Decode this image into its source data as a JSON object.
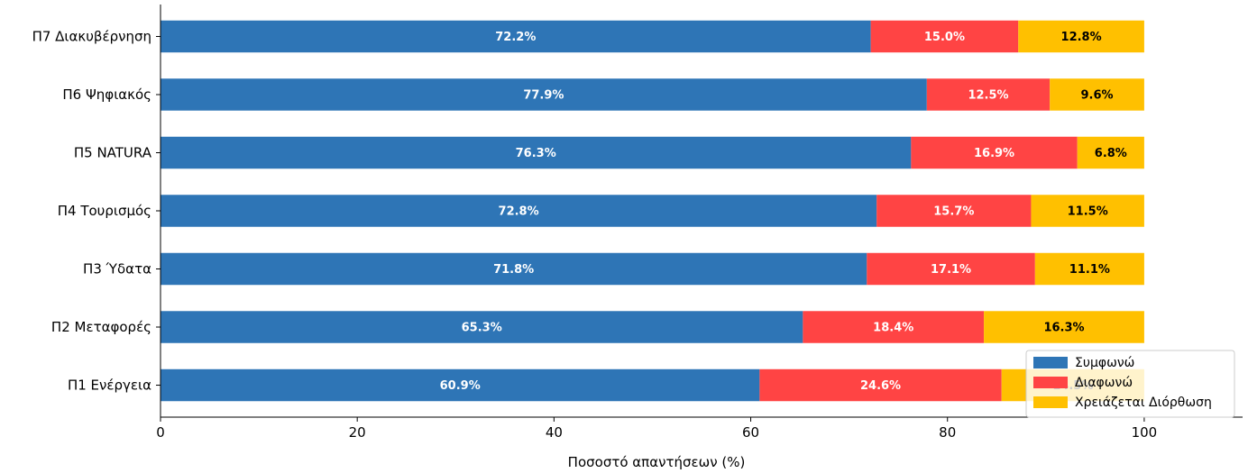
{
  "chart_data": {
    "type": "bar",
    "orientation": "horizontal",
    "stacked": true,
    "categories": [
      "Π1 Ενέργεια",
      "Π2 Μεταφορές",
      "Π3 Ύδατα",
      "Π4 Τουρισμός",
      "Π5 NATURA",
      "Π6 Ψηφιακός",
      "Π7 Διακυβέρνηση"
    ],
    "series": [
      {
        "name": "Συμφωνώ",
        "color": "#2e75b6",
        "label_color": "#ffffff",
        "values": [
          60.9,
          65.3,
          71.8,
          72.8,
          76.3,
          77.9,
          72.2
        ]
      },
      {
        "name": "Διαφωνώ",
        "color": "#ff4444",
        "label_color": "#ffffff",
        "values": [
          24.6,
          18.4,
          17.1,
          15.7,
          16.9,
          12.5,
          15.0
        ]
      },
      {
        "name": "Χρειάζεται Διόρθωση",
        "color": "#ffc000",
        "label_color": "#000000",
        "values": [
          14.5,
          16.3,
          11.1,
          11.5,
          6.8,
          9.6,
          12.8
        ]
      }
    ],
    "value_labels": [
      [
        "60.9%",
        "65.3%",
        "71.8%",
        "72.8%",
        "76.3%",
        "77.9%",
        "72.2%"
      ],
      [
        "24.6%",
        "18.4%",
        "17.1%",
        "15.7%",
        "16.9%",
        "12.5%",
        "15.0%"
      ],
      [
        "14.5%",
        "16.3%",
        "11.1%",
        "11.5%",
        "6.8%",
        "9.6%",
        "12.8%"
      ]
    ],
    "xlabel": "Ποσοστό απαντήσεων (%)",
    "ylabel": "",
    "title": "",
    "xlim": [
      0,
      110
    ],
    "xticks": [
      0,
      20,
      40,
      60,
      80,
      100
    ],
    "grid": false,
    "legend_position": "lower-right"
  }
}
